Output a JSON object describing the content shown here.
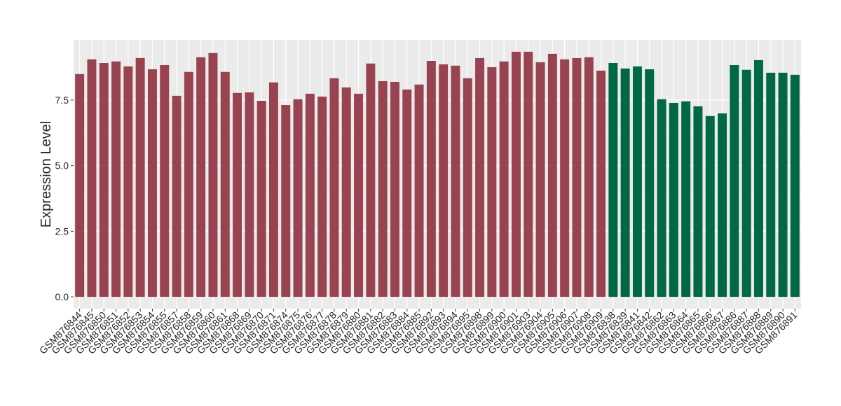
{
  "chart_data": {
    "type": "bar",
    "y_label": "Expression Level",
    "ylim": [
      -0.45,
      9.79
    ],
    "yticks": [
      {
        "value": 0,
        "label": "0.0"
      },
      2.5,
      {
        "value": 5,
        "label": "5.0"
      },
      7.5
    ],
    "grid": true,
    "series": [
      {
        "color": "#9a4350",
        "categories": [
          "GSM876844",
          "GSM876845",
          "GSM876850",
          "GSM876851",
          "GSM876852",
          "GSM876853",
          "GSM876854",
          "GSM876855",
          "GSM876857",
          "GSM876858",
          "GSM876859",
          "GSM876860",
          "GSM876861",
          "GSM876868",
          "GSM876869",
          "GSM876870",
          "GSM876871",
          "GSM876874",
          "GSM876875",
          "GSM876876",
          "GSM876877",
          "GSM876878",
          "GSM876879",
          "GSM876880",
          "GSM876881",
          "GSM876882",
          "GSM876883",
          "GSM876884",
          "GSM876885",
          "GSM876892",
          "GSM876893",
          "GSM876894",
          "GSM876895",
          "GSM876898",
          "GSM876899",
          "GSM876900",
          "GSM876901",
          "GSM876903",
          "GSM876904",
          "GSM876905",
          "GSM876906",
          "GSM876907",
          "GSM876908",
          "GSM876909"
        ],
        "values": [
          8.49,
          9.05,
          8.91,
          8.97,
          8.78,
          9.1,
          8.67,
          8.83,
          7.66,
          8.57,
          9.13,
          9.29,
          8.57,
          7.77,
          7.79,
          7.47,
          8.17,
          7.31,
          7.53,
          7.74,
          7.63,
          8.33,
          7.98,
          7.74,
          8.89,
          8.22,
          8.19,
          7.9,
          8.09,
          8.99,
          8.86,
          8.81,
          8.33,
          9.1,
          8.75,
          8.97,
          9.34,
          9.34,
          8.94,
          9.26,
          9.05,
          9.1,
          9.13,
          8.62
        ]
      },
      {
        "color": "#006845",
        "categories": [
          "GSM876838",
          "GSM876839",
          "GSM876841",
          "GSM876842",
          "GSM876862",
          "GSM876863",
          "GSM876864",
          "GSM876865",
          "GSM876866",
          "GSM876867",
          "GSM876886",
          "GSM876887",
          "GSM876888",
          "GSM876889",
          "GSM876890",
          "GSM876891"
        ],
        "values": [
          8.91,
          8.7,
          8.78,
          8.67,
          7.53,
          7.39,
          7.45,
          7.26,
          6.89,
          6.99,
          8.83,
          8.65,
          9.02,
          8.54,
          8.54,
          8.46
        ]
      }
    ]
  }
}
